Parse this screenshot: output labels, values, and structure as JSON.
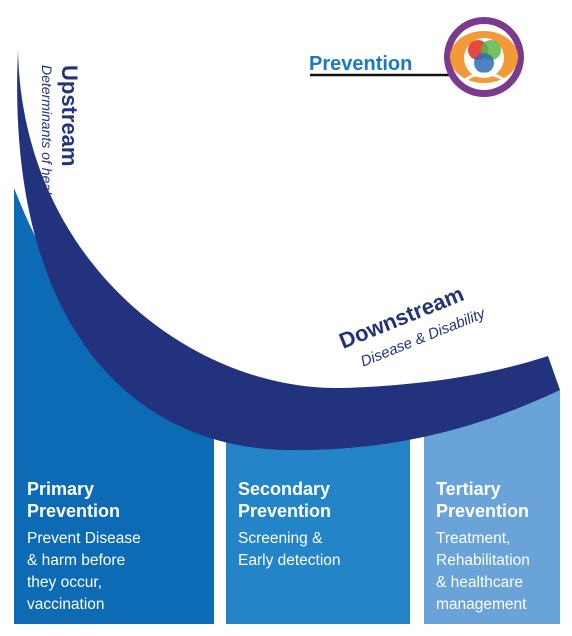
{
  "logo_label": "Prevention",
  "upstream": {
    "title": "Upstream",
    "subtitle": "Determinants of health"
  },
  "downstream": {
    "title": "Downstream",
    "subtitle": "Disease & Disability"
  },
  "levels": [
    {
      "title_lines": [
        "Primary",
        "Prevention"
      ],
      "body_lines": [
        "Prevent Disease",
        "& harm before",
        "they occur,",
        "vaccination"
      ]
    },
    {
      "title_lines": [
        "Secondary",
        "Prevention"
      ],
      "body_lines": [
        "Screening &",
        "Early detection"
      ]
    },
    {
      "title_lines": [
        "Tertiary",
        "Prevention"
      ],
      "body_lines": [
        "Treatment,",
        "Rehabilitation",
        "& healthcare",
        "management"
      ]
    }
  ],
  "colors": {
    "navy": "#22327d",
    "primary": "#0d6bb5",
    "secondary": "#2384c8",
    "tertiary": "#6aa3d8",
    "logo_text": "#1b78c2",
    "logo_orange": "#f29a38",
    "logo_purple": "#7b3a8e",
    "logo_red": "#e3342b",
    "logo_blue": "#2e6fb5",
    "logo_green": "#57b947"
  }
}
